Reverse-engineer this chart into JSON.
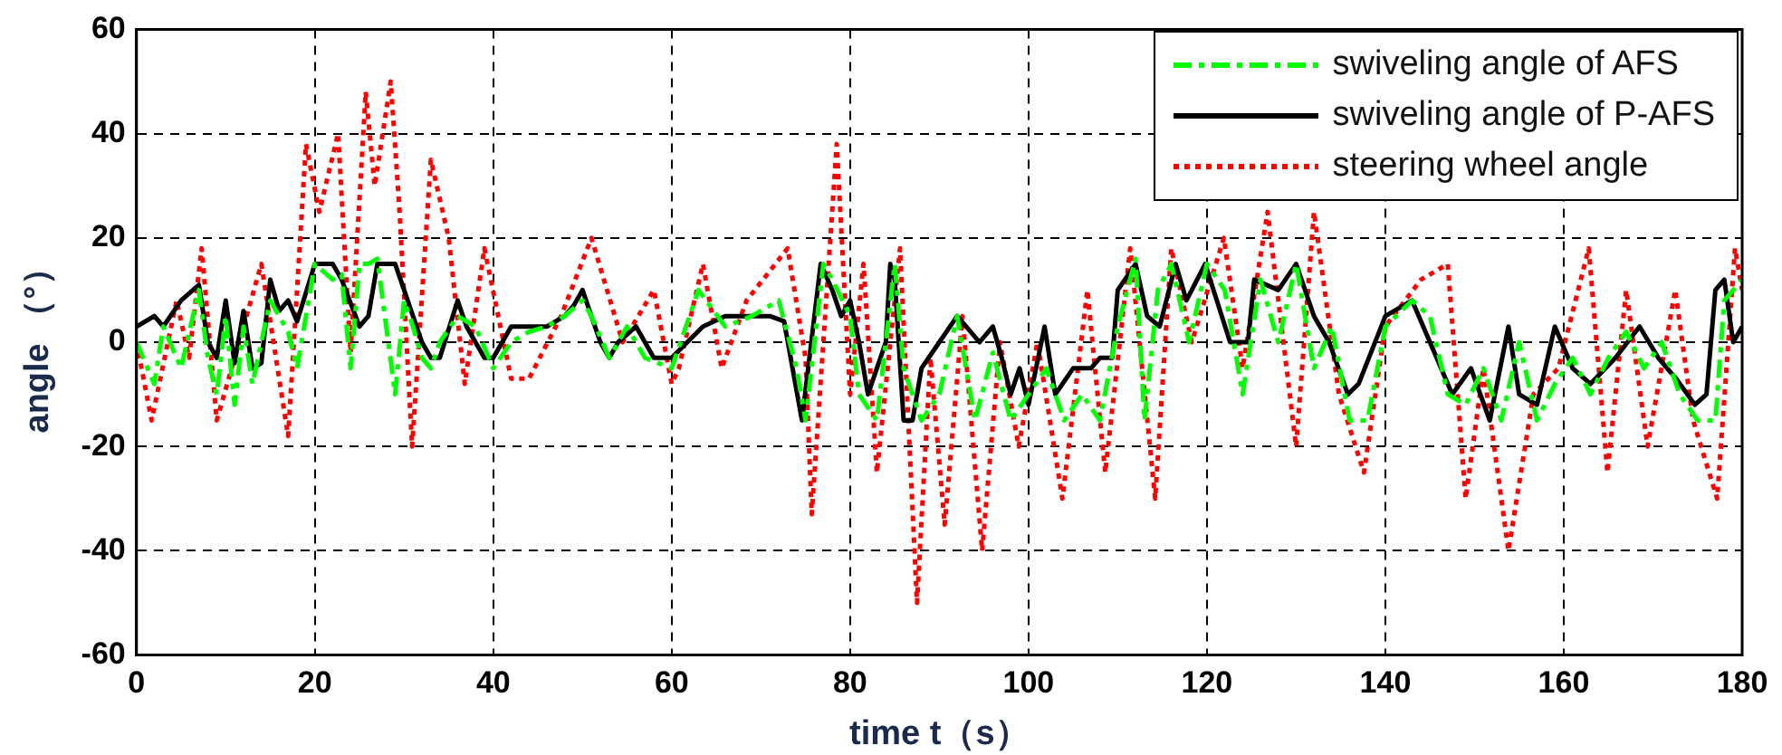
{
  "chart_data": {
    "type": "line",
    "xlabel": "time t（s）",
    "ylabel": "angle （°）",
    "xlim": [
      0,
      180
    ],
    "xticks": [
      0,
      20,
      40,
      60,
      80,
      100,
      120,
      140,
      160,
      180
    ],
    "ylim": [
      -60,
      60
    ],
    "yticks": [
      -60,
      -40,
      -20,
      0,
      20,
      40,
      60
    ],
    "grid": true,
    "legend": "top right",
    "marker": "none",
    "series": [
      {
        "name": "swiveling angle of AFS",
        "color": "#00ff00",
        "line_style": "dashed",
        "x": [
          0,
          2,
          3,
          5,
          7,
          8,
          9,
          10,
          11,
          12,
          13,
          14,
          15,
          16,
          17,
          18,
          20,
          22,
          23,
          24,
          25,
          26,
          27,
          29,
          30,
          31,
          32,
          33,
          34,
          36,
          38,
          40,
          42,
          44,
          46,
          48,
          50,
          51,
          53,
          55,
          57,
          60,
          63,
          66,
          69,
          72,
          74,
          75,
          77,
          78,
          80,
          81,
          83,
          85,
          86,
          88,
          90,
          92,
          94,
          96,
          98,
          100,
          102,
          104,
          106,
          108,
          110,
          112,
          113,
          114.5,
          116,
          118,
          120,
          122,
          124,
          126,
          128,
          130,
          132,
          134,
          136,
          138,
          140,
          143,
          145,
          147,
          149,
          151,
          153,
          155,
          157,
          159,
          161,
          163,
          165,
          167,
          169,
          171,
          173,
          175,
          177,
          178,
          180
        ],
        "values": [
          0,
          -8,
          3,
          -5,
          10,
          -3,
          -10,
          5,
          -12,
          3,
          -8,
          0,
          8,
          5,
          2,
          -5,
          15,
          12,
          13,
          -5,
          15,
          15,
          16,
          -10,
          8,
          3,
          -3,
          -5,
          0,
          5,
          3,
          -5,
          0,
          2,
          3,
          5,
          8,
          5,
          -3,
          3,
          -3,
          -5,
          10,
          3,
          5,
          8,
          -5,
          -15,
          15,
          12,
          5,
          -10,
          -15,
          15,
          -5,
          -15,
          -10,
          5,
          -15,
          -2,
          -15,
          -10,
          -5,
          -15,
          -10,
          -15,
          3,
          16,
          -15,
          10,
          15,
          0,
          15,
          10,
          -10,
          12,
          0,
          15,
          -5,
          3,
          -15,
          -15,
          3,
          8,
          5,
          -10,
          -12,
          -5,
          -15,
          0,
          -15,
          -8,
          -3,
          -10,
          -3,
          2,
          -5,
          0,
          -10,
          -15,
          -15,
          8,
          12
        ]
      },
      {
        "name": "swiveling angle of P-AFS",
        "color": "#000000",
        "line_style": "solid",
        "x": [
          0,
          2,
          3,
          5,
          7,
          8,
          9,
          10,
          11,
          12,
          13,
          14,
          15,
          16,
          17,
          18,
          20,
          22,
          23,
          25,
          26,
          27,
          29,
          30,
          31,
          32,
          33,
          34,
          36,
          37,
          38,
          39,
          40,
          42,
          46,
          48,
          49,
          50,
          51,
          52,
          53,
          54,
          56,
          57,
          58,
          60,
          63.5,
          66,
          68.4,
          71,
          72.6,
          74.6,
          76.7,
          78,
          79,
          80,
          81,
          82,
          84,
          84.5,
          85,
          86,
          87,
          88,
          90,
          92,
          93,
          94.5,
          96,
          97,
          98,
          99,
          100,
          101.8,
          103,
          105,
          107,
          108,
          109.4,
          110,
          112,
          113.3,
          114.7,
          116.5,
          117.7,
          119.8,
          122.6,
          124.6,
          125.3,
          128,
          130,
          132,
          133.7,
          135.8,
          137,
          140,
          143,
          145,
          147.5,
          149.6,
          151.7,
          153.8,
          155,
          157,
          159,
          161,
          163,
          165.8,
          168.5,
          170.6,
          172.6,
          174.7,
          176,
          177,
          178,
          179,
          180
        ],
        "values": [
          3,
          5,
          3,
          8,
          11,
          0,
          -3,
          8,
          -4,
          6,
          -5,
          -4,
          12,
          6,
          8,
          4,
          15,
          15,
          12,
          3,
          5,
          15,
          15,
          10,
          5,
          0,
          -3,
          -3,
          8,
          3,
          0,
          -3,
          -3,
          3,
          3,
          5,
          7,
          10,
          5,
          0,
          -3,
          0,
          3,
          0,
          -3,
          -3,
          3,
          5,
          5,
          5,
          4,
          -15,
          15,
          10,
          5,
          8,
          0,
          -10,
          0,
          15,
          12,
          -15,
          -15,
          -5,
          0,
          5,
          3,
          0,
          3,
          -3,
          -10,
          -5,
          -12,
          3,
          -10,
          -5,
          -5,
          -3,
          -3,
          10,
          15,
          5,
          3,
          15,
          8,
          15,
          0,
          0,
          12,
          10,
          15,
          5,
          0,
          -10,
          -8,
          5,
          8,
          0,
          -10,
          -5,
          -15,
          3,
          -10,
          -12,
          3,
          -5,
          -8,
          -3,
          3,
          -3,
          -7,
          -12,
          -10,
          10,
          12,
          0,
          3
        ]
      },
      {
        "name": "steering wheel angle",
        "color": "#ff0000",
        "line_style": "dotted",
        "x": [
          0,
          1.7,
          4.5,
          5.9,
          7.3,
          9,
          11.5,
          14,
          17,
          19,
          20.5,
          22.6,
          24,
          25.7,
          26.7,
          28.5,
          29.5,
          30.9,
          33,
          35,
          36.8,
          39,
          42,
          44,
          47.6,
          51,
          54.5,
          58,
          60,
          60.8,
          63.5,
          65.6,
          68.4,
          73,
          75,
          75.7,
          78.5,
          80,
          81.5,
          83,
          85.6,
          87.5,
          89,
          90.6,
          92.6,
          94.8,
          96.8,
          98.9,
          101,
          103.8,
          106.6,
          108.6,
          111.4,
          114.2,
          116,
          118.3,
          121.9,
          124,
          126.8,
          130,
          132,
          134.8,
          137.6,
          140,
          144,
          147,
          149,
          151,
          153.8,
          156.6,
          159.4,
          162.8,
          164.9,
          167,
          169.4,
          172.5,
          174.5,
          177.2,
          179.2,
          180
        ],
        "values": [
          0,
          -15,
          8,
          -3,
          18,
          -15,
          0,
          15,
          -18,
          38,
          25,
          40,
          -2,
          48,
          30,
          50,
          25,
          -20,
          35,
          20,
          -8,
          18,
          -7,
          -7,
          5,
          20,
          0,
          10,
          -8,
          -5,
          15,
          -5,
          8,
          18,
          -3,
          -33,
          38,
          -10,
          15,
          -25,
          18,
          -50,
          -3,
          -35,
          5,
          -40,
          0,
          -20,
          0,
          -30,
          10,
          -25,
          18,
          -30,
          18,
          0,
          20,
          -5,
          25,
          -20,
          25,
          -10,
          -25,
          3,
          12,
          15,
          -30,
          -5,
          -40,
          -10,
          -5,
          18,
          -25,
          10,
          -20,
          10,
          -15,
          -30,
          18,
          10
        ]
      }
    ]
  }
}
